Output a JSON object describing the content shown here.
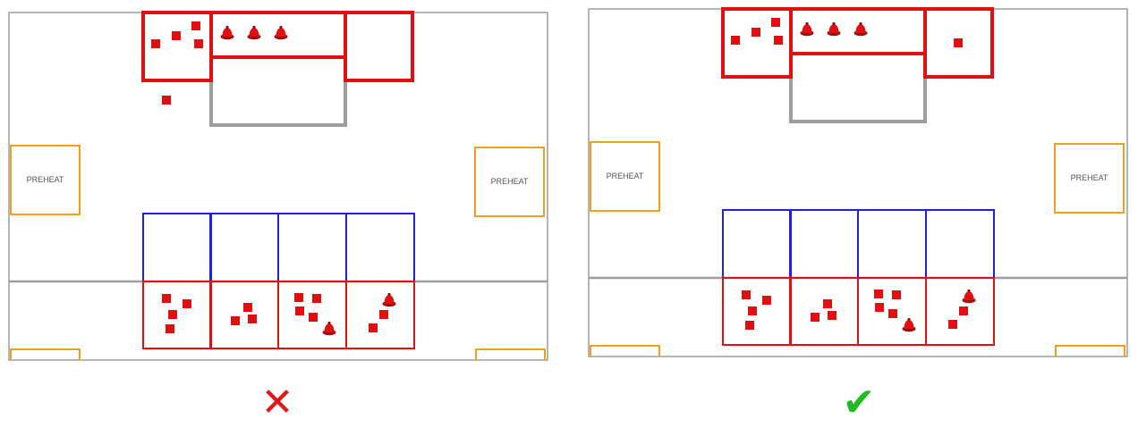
{
  "labels": {
    "preheat": "PREHEAT"
  },
  "verdict": {
    "wrong_symbol": "✕",
    "right_symbol": "✔"
  },
  "colors": {
    "frame": "#9e9e9e",
    "stage": "#e01010",
    "queue": "#2020e0",
    "preheat": "#f0a020",
    "item": "#e01010",
    "cross": "#e01818",
    "check": "#22bb22"
  },
  "icons": {
    "square_item": "red-square-item-icon",
    "round_item": "bell-item-icon"
  },
  "panels": [
    {
      "id": "left",
      "verdict": "wrong",
      "top_stage": {
        "loose_squares": 1,
        "right_box_squares": 0
      }
    },
    {
      "id": "right",
      "verdict": "correct",
      "top_stage": {
        "loose_squares": 0,
        "right_box_squares": 1
      }
    }
  ]
}
